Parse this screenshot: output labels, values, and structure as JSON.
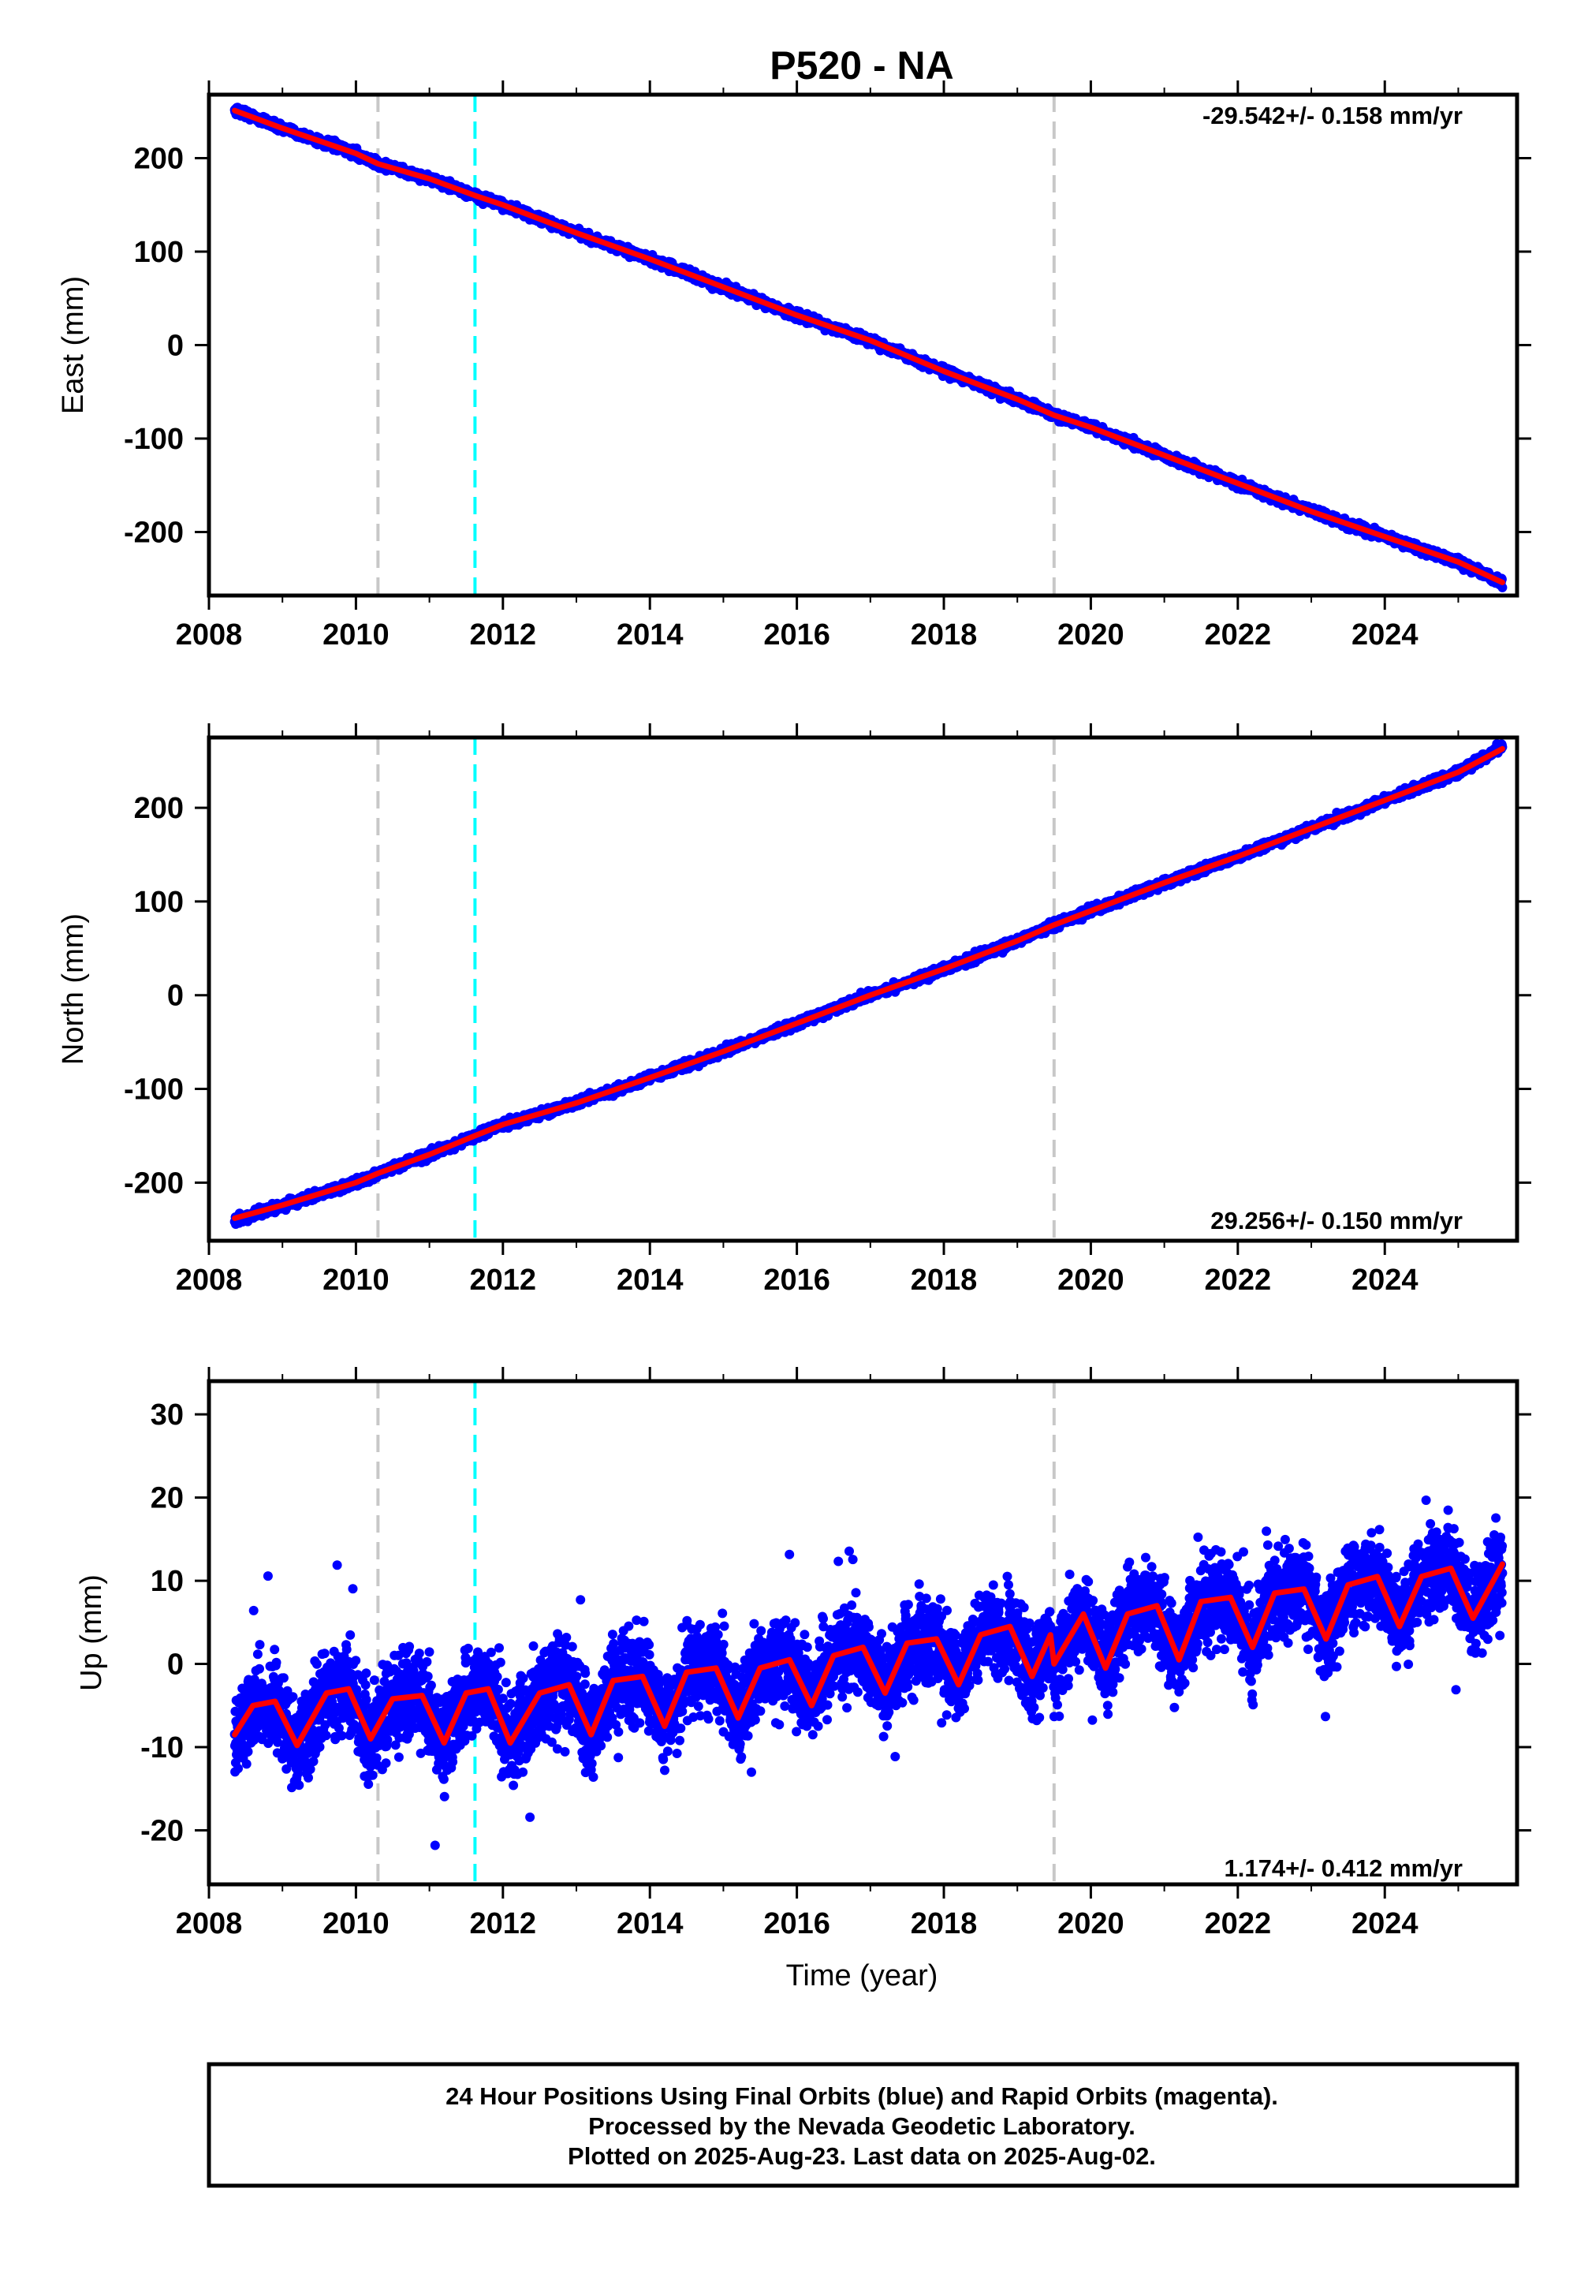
{
  "title": "P520 - NA",
  "xlabel": "Time (year)",
  "colors": {
    "data_points": "#0000ff",
    "model_fit": "#ff0000",
    "equipment_change_line": "#c8c8c8",
    "earthquake_line": "#00ffff",
    "frame": "#000000"
  },
  "event_lines": {
    "equipment_change_years": [
      2010.3,
      2019.5
    ],
    "earthquake_years": [
      2011.62
    ]
  },
  "footer": {
    "line1": "24 Hour Positions Using Final Orbits (blue) and Rapid Orbits (magenta).",
    "line2": "Processed by the Nevada Geodetic Laboratory.",
    "line3": "Plotted on 2025-Aug-23. Last data on 2025-Aug-02."
  },
  "chart_data": [
    {
      "type": "scatter",
      "component": "east",
      "ylabel": "East (mm)",
      "rate_text": "-29.542+/- 0.158 mm/yr",
      "xlim": [
        2008.0,
        2025.8
      ],
      "ylim": [
        -268,
        268
      ],
      "xticks": [
        2008,
        2010,
        2012,
        2014,
        2016,
        2018,
        2020,
        2022,
        2024
      ],
      "yticks": [
        -200,
        -100,
        0,
        100,
        200
      ],
      "series": [
        {
          "kind": "daily_positions",
          "x": [
            2008.35,
            2009.0,
            2010.0,
            2010.3,
            2011.0,
            2011.62,
            2012.0,
            2013.0,
            2014.0,
            2015.0,
            2016.0,
            2017.0,
            2018.0,
            2019.0,
            2019.5,
            2020.0,
            2021.0,
            2022.0,
            2023.0,
            2024.0,
            2025.0,
            2025.6
          ],
          "y": [
            252,
            232,
            205,
            194,
            178,
            160,
            150,
            120,
            92,
            62,
            32,
            5,
            -28,
            -58,
            -75,
            -88,
            -118,
            -148,
            -178,
            -205,
            -232,
            -255
          ]
        },
        {
          "kind": "model_fit",
          "x": [
            2008.35,
            2009.0,
            2010.0,
            2010.3,
            2011.0,
            2011.62,
            2012.0,
            2013.0,
            2014.0,
            2015.0,
            2016.0,
            2017.0,
            2018.0,
            2019.0,
            2019.5,
            2020.0,
            2021.0,
            2022.0,
            2023.0,
            2024.0,
            2025.0,
            2025.6
          ],
          "y": [
            251,
            232,
            205,
            194,
            178,
            160,
            150,
            120,
            92,
            62,
            32,
            5,
            -28,
            -58,
            -75,
            -88,
            -118,
            -148,
            -178,
            -205,
            -232,
            -254
          ]
        }
      ]
    },
    {
      "type": "scatter",
      "component": "north",
      "ylabel": "North (mm)",
      "rate_text": "29.256+/- 0.150 mm/yr",
      "xlim": [
        2008.0,
        2025.8
      ],
      "ylim": [
        -262,
        275
      ],
      "xticks": [
        2008,
        2010,
        2012,
        2014,
        2016,
        2018,
        2020,
        2022,
        2024
      ],
      "yticks": [
        -200,
        -100,
        0,
        100,
        200
      ],
      "series": [
        {
          "kind": "daily_positions",
          "x": [
            2008.35,
            2009.0,
            2010.0,
            2010.3,
            2011.0,
            2011.62,
            2012.0,
            2013.0,
            2014.0,
            2015.0,
            2016.0,
            2017.0,
            2018.0,
            2019.0,
            2019.5,
            2020.0,
            2021.0,
            2022.0,
            2023.0,
            2024.0,
            2025.0,
            2025.6
          ],
          "y": [
            -240,
            -225,
            -200,
            -190,
            -170,
            -150,
            -138,
            -115,
            -88,
            -60,
            -30,
            0,
            28,
            58,
            75,
            90,
            120,
            148,
            178,
            208,
            238,
            265
          ]
        },
        {
          "kind": "model_fit",
          "x": [
            2008.35,
            2009.0,
            2010.0,
            2010.3,
            2011.0,
            2011.62,
            2012.0,
            2013.0,
            2014.0,
            2015.0,
            2016.0,
            2017.0,
            2018.0,
            2019.0,
            2019.5,
            2020.0,
            2021.0,
            2022.0,
            2023.0,
            2024.0,
            2025.0,
            2025.6
          ],
          "y": [
            -238,
            -224,
            -200,
            -190,
            -170,
            -150,
            -138,
            -115,
            -88,
            -60,
            -30,
            0,
            28,
            58,
            75,
            90,
            120,
            148,
            178,
            208,
            238,
            263
          ]
        }
      ]
    },
    {
      "type": "scatter",
      "component": "up",
      "ylabel": "Up (mm)",
      "rate_text": "1.174+/- 0.412 mm/yr",
      "xlim": [
        2008.0,
        2025.8
      ],
      "ylim": [
        -26.5,
        34
      ],
      "xticks": [
        2008,
        2010,
        2012,
        2014,
        2016,
        2018,
        2020,
        2022,
        2024
      ],
      "yticks": [
        -20,
        -10,
        0,
        10,
        20,
        30
      ],
      "series": [
        {
          "kind": "daily_positions",
          "x": [
            2008.35,
            2008.5,
            2009.0,
            2009.5,
            2010.0,
            2010.3,
            2010.6,
            2011.0,
            2011.3,
            2011.62,
            2012.0,
            2012.5,
            2013.0,
            2013.5,
            2014.0,
            2014.5,
            2015.0,
            2015.5,
            2016.0,
            2016.5,
            2017.0,
            2017.5,
            2018.0,
            2018.5,
            2019.0,
            2019.5,
            2020.0,
            2020.5,
            2021.0,
            2021.5,
            2022.0,
            2022.5,
            2023.0,
            2023.5,
            2024.0,
            2024.5,
            2025.0,
            2025.6
          ],
          "y": [
            -8,
            -4,
            -8,
            -3,
            -6,
            -9,
            -4,
            -6,
            -9,
            -3,
            -7,
            -3,
            -6,
            -2,
            -5,
            -1,
            -4,
            0,
            -3,
            1,
            -2,
            2,
            -1,
            3,
            0,
            2,
            3,
            5,
            1,
            6,
            3,
            7,
            4,
            9,
            10,
            9,
            6,
            11
          ]
        },
        {
          "kind": "model_fit",
          "x": [
            2008.35,
            2008.6,
            2008.9,
            2009.2,
            2009.6,
            2009.9,
            2010.2,
            2010.5,
            2010.9,
            2011.2,
            2011.5,
            2011.8,
            2012.1,
            2012.5,
            2012.9,
            2013.2,
            2013.5,
            2013.9,
            2014.2,
            2014.5,
            2014.9,
            2015.2,
            2015.5,
            2015.9,
            2016.2,
            2016.5,
            2016.9,
            2017.2,
            2017.5,
            2017.9,
            2018.2,
            2018.5,
            2018.9,
            2019.2,
            2019.45,
            2019.5,
            2019.9,
            2020.2,
            2020.5,
            2020.9,
            2021.2,
            2021.5,
            2021.9,
            2022.2,
            2022.5,
            2022.9,
            2023.2,
            2023.5,
            2023.9,
            2024.2,
            2024.5,
            2024.9,
            2025.2,
            2025.6
          ],
          "y": [
            -8.5,
            -5.0,
            -4.5,
            -9.8,
            -3.5,
            -3.0,
            -9.0,
            -4.2,
            -3.8,
            -9.5,
            -3.5,
            -3.0,
            -9.5,
            -3.5,
            -2.5,
            -8.5,
            -2.0,
            -1.5,
            -7.5,
            -1.0,
            -0.5,
            -6.5,
            -0.5,
            0.5,
            -5.0,
            1.0,
            2.0,
            -3.5,
            2.5,
            3.0,
            -2.5,
            3.5,
            4.5,
            -1.5,
            3.5,
            0.0,
            6.0,
            -0.5,
            6.0,
            7.0,
            0.5,
            7.5,
            8.0,
            2.0,
            8.5,
            9.0,
            3.0,
            9.5,
            10.5,
            4.5,
            10.5,
            11.5,
            5.5,
            12.0
          ]
        }
      ]
    }
  ]
}
